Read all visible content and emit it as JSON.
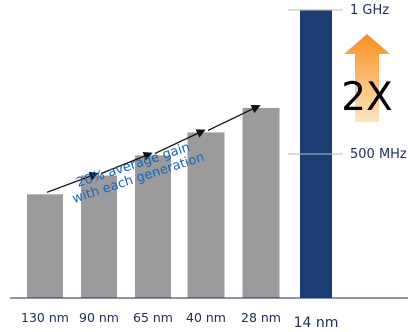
{
  "chart_data": {
    "type": "bar",
    "categories": [
      "130 nm",
      "90 nm",
      "65 nm",
      "40 nm",
      "28 nm",
      "14 nm"
    ],
    "values": [
      360,
      425,
      495,
      575,
      660,
      1000
    ],
    "unit": "MHz",
    "ylim": [
      0,
      1000
    ],
    "y_ticks": [
      {
        "value": 500,
        "label": "500 MHz"
      },
      {
        "value": 1000,
        "label": "1 GHz"
      }
    ],
    "highlight_category": "14 nm",
    "annotations": {
      "trend_text": [
        "20% average gain",
        "with each generation"
      ],
      "multiplier_text": "2X"
    },
    "colors": {
      "bar": "#9b9b9b",
      "highlight_bar": "#1b3d73",
      "axis": "#1d2d55",
      "trend_text": "#1565c0",
      "arrow_top": "#f7901e",
      "arrow_bottom": "#fde5c2"
    },
    "grid": false,
    "legend": "none"
  }
}
